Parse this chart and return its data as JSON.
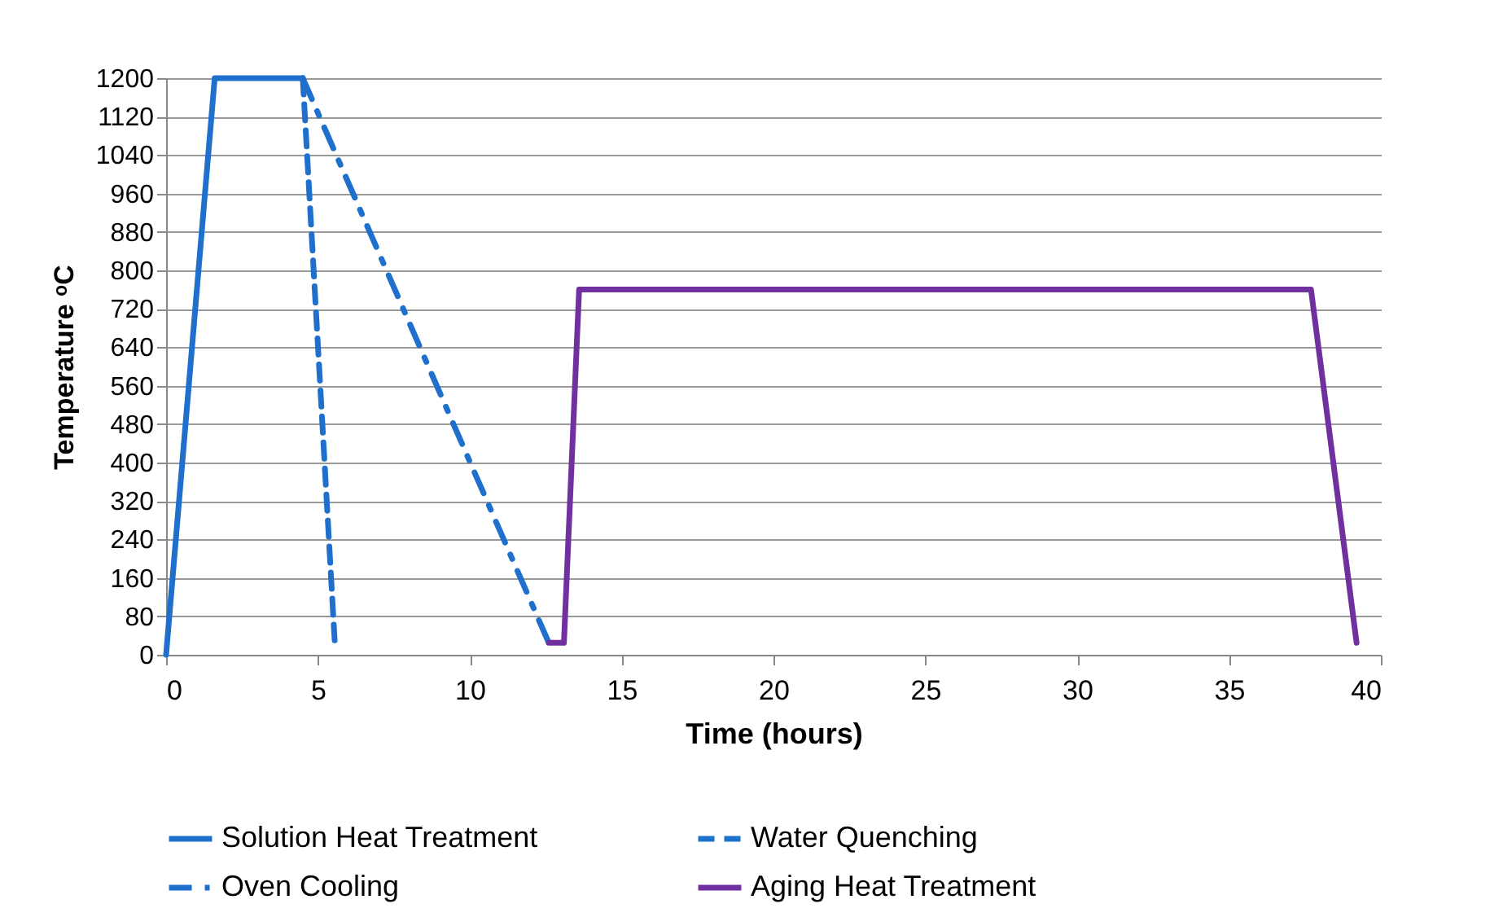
{
  "chart_data": {
    "type": "line",
    "xlabel": "Time (hours)",
    "ylabel": "Temperature ᵒC",
    "xlim": [
      0,
      40
    ],
    "xticks": [
      0,
      5,
      10,
      15,
      20,
      25,
      30,
      35,
      40
    ],
    "ylim": [
      0,
      1200
    ],
    "yticks": [
      0,
      80,
      160,
      240,
      320,
      400,
      480,
      560,
      640,
      720,
      800,
      880,
      960,
      1040,
      1120,
      1200
    ],
    "grid": "y",
    "legend": "bottom",
    "marker": "none",
    "series": [
      {
        "name": "Solution Heat Treatment",
        "color": "#1f6fcc",
        "line_style": "solid",
        "x": [
          0,
          1.6,
          4.5
        ],
        "values": [
          0,
          1200,
          1200
        ]
      },
      {
        "name": "Water Quenching",
        "color": "#1f6fcc",
        "line_style": "dashed",
        "x": [
          4.5,
          5.55
        ],
        "values": [
          1200,
          30
        ]
      },
      {
        "name": "Oven Cooling",
        "color": "#1f6fcc",
        "line_style": "dashdot",
        "x": [
          4.5,
          12.6
        ],
        "values": [
          1200,
          25
        ]
      },
      {
        "name": "Aging Heat Treatment",
        "color": "#7030a0",
        "line_style": "solid",
        "x": [
          12.6,
          13.1,
          13.6,
          37.7,
          39.2
        ],
        "values": [
          25,
          25,
          760,
          760,
          25
        ]
      }
    ]
  }
}
